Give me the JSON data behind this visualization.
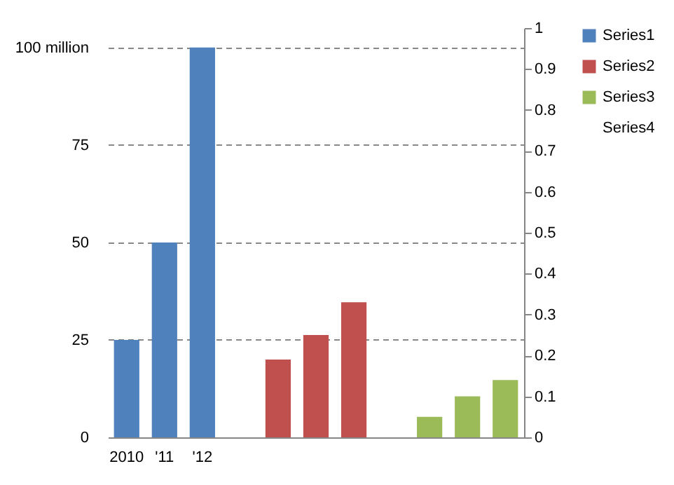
{
  "chart_data": {
    "type": "bar",
    "categories": [
      "2010",
      "'11",
      "'12",
      null,
      null,
      null,
      null,
      null,
      null,
      null,
      null
    ],
    "series": [
      {
        "name": "Series1",
        "color": "#4f81bd",
        "values": [
          25,
          50,
          100,
          null,
          null,
          null,
          null,
          null,
          null,
          null,
          null
        ]
      },
      {
        "name": "Series2",
        "color": "#c0504d",
        "axis": "y2",
        "values": [
          null,
          null,
          null,
          null,
          0.19,
          0.25,
          0.33,
          null,
          null,
          null,
          null
        ]
      },
      {
        "name": "Series3",
        "color": "#9bbb59",
        "axis": "y2",
        "values": [
          null,
          null,
          null,
          null,
          null,
          null,
          null,
          null,
          0.05,
          0.1,
          0.14
        ]
      },
      {
        "name": "Series4",
        "color": null,
        "values": [
          null,
          null,
          null,
          null,
          null,
          null,
          null,
          null,
          null,
          null,
          null
        ]
      }
    ],
    "ylim": [
      0,
      105
    ],
    "yticks": [
      0,
      25,
      50,
      75,
      {
        "value": 100,
        "label": "100 million"
      }
    ],
    "y2lim": [
      0,
      1
    ],
    "y2ticks": [
      0,
      0.1,
      0.2,
      0.3,
      0.4,
      0.5,
      0.6,
      0.7,
      0.8,
      0.9,
      1
    ],
    "grid": "y",
    "legend": "right"
  }
}
